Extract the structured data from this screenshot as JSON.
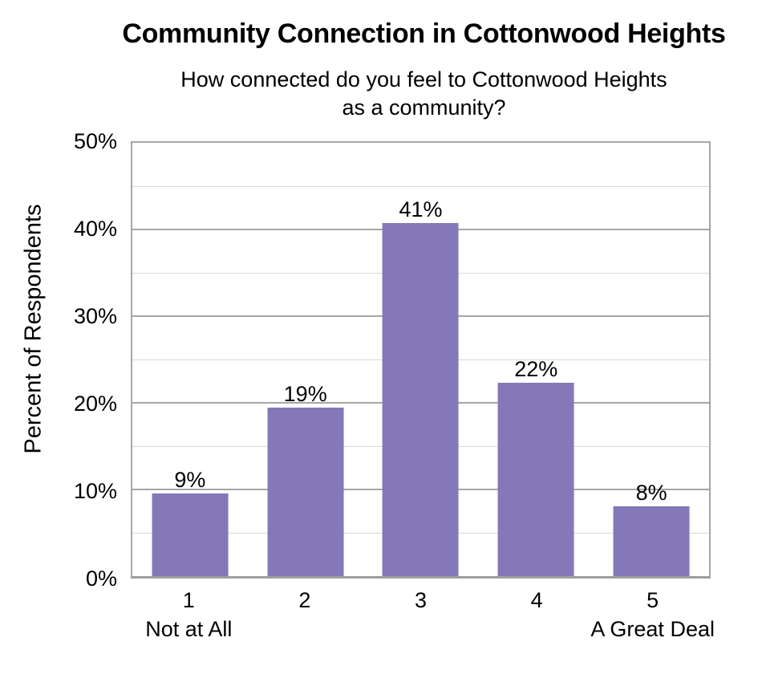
{
  "chart_data": {
    "type": "bar",
    "title": "Community Connection in Cottonwood Heights",
    "subtitle": "How connected do you feel to Cottonwood Heights as a community?",
    "subtitle_lines": [
      "How connected do you feel to Cottonwood Heights",
      "as a community?"
    ],
    "categories": [
      "1",
      "2",
      "3",
      "4",
      "5"
    ],
    "category_sublabels": [
      "Not at All",
      "",
      "",
      "",
      "A Great Deal"
    ],
    "values": [
      9,
      19,
      41,
      22,
      8
    ],
    "bar_labels": [
      "9%",
      "19%",
      "41%",
      "22%",
      "8%"
    ],
    "bar_heights_pct": [
      9.5,
      19.4,
      40.7,
      22.3,
      8.1
    ],
    "xlabel": "",
    "ylabel": "Percent of Respondents",
    "ylim": [
      0,
      50
    ],
    "y_major_step": 10,
    "y_minor_step": 5,
    "y_tick_labels": [
      "0%",
      "10%",
      "20%",
      "30%",
      "40%",
      "50%"
    ],
    "grid": true,
    "legend": false,
    "colors": {
      "bar": "#8578B8",
      "major_grid": "#A6A6A6",
      "minor_grid": "#D9D9D9",
      "axis": "#9E9E9E",
      "text": "#000000",
      "background": "#FFFFFF"
    }
  }
}
